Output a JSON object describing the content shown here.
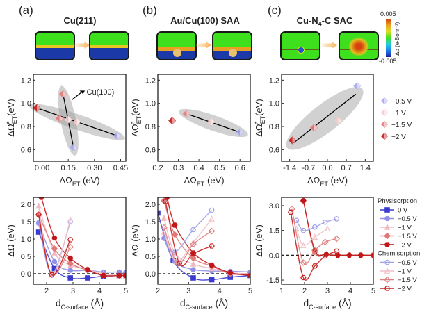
{
  "panels": [
    {
      "label": "(a)",
      "title": "Cu(211)"
    },
    {
      "label": "(b)",
      "title": "Au/Cu(100) SAA"
    },
    {
      "label": "(c)",
      "title_main": "Cu-N",
      "title_sub": "4",
      "title_rest": "-C SAC"
    }
  ],
  "colorbar": {
    "max": "0.005",
    "min": "-0.005",
    "label": "Δρ (e·Bohr⁻³)",
    "colors": [
      "#1a1aa0",
      "#1e7ff0",
      "#22d0d8",
      "#3ee01e",
      "#d8e020",
      "#f0a020",
      "#d04010"
    ]
  },
  "chart_data": [
    {
      "type": "scatter",
      "panel": "a",
      "title": "Cu(211)",
      "xlabel": "ΔΩ_ET (eV)",
      "ylabel": "ΔΩ‡_ET (eV)",
      "xlim": [
        -0.05,
        0.48
      ],
      "ylim": [
        0.5,
        1.25
      ],
      "xticks": [
        "0.00",
        "0.15",
        "0.30",
        "0.45"
      ],
      "xtick_values": [
        0.0,
        0.15,
        0.3,
        0.45
      ],
      "yticks": [
        "0.6",
        "0.8",
        "1.0",
        "1.2"
      ],
      "ytick_values": [
        0.6,
        0.8,
        1.0,
        1.2
      ],
      "annotation": "Cu(100)",
      "series": [
        {
          "name": "Cu(211)",
          "points": [
            [
              -0.03,
              0.96,
              "-2 V"
            ],
            [
              0.1,
              0.87,
              "-1.5 V"
            ],
            [
              0.2,
              0.84,
              "-1 V"
            ],
            [
              0.43,
              0.72,
              "-0.5 V"
            ]
          ],
          "fit": [
            [
              -0.03,
              0.96
            ],
            [
              0.43,
              0.72
            ]
          ]
        },
        {
          "name": "Cu(100)",
          "points": [
            [
              0.12,
              1.08,
              "-1.5 V"
            ],
            [
              0.15,
              0.86,
              "-1 V"
            ],
            [
              0.18,
              0.62,
              "-0.5 V"
            ]
          ],
          "fit": [
            [
              0.12,
              1.08
            ],
            [
              0.18,
              0.62
            ]
          ]
        }
      ]
    },
    {
      "type": "scatter",
      "panel": "b",
      "title": "Au/Cu(100) SAA",
      "xlabel": "ΔΩ_ET (eV)",
      "ylabel": "ΔΩ‡_ET (eV)",
      "xlim": [
        0.2,
        0.65
      ],
      "ylim": [
        0.5,
        1.25
      ],
      "xticks": [
        "0.2",
        "0.3",
        "0.4",
        "0.5",
        "0.6"
      ],
      "xtick_values": [
        0.2,
        0.3,
        0.4,
        0.5,
        0.6
      ],
      "yticks": [
        "0.6",
        "0.8",
        "1.0",
        "1.2"
      ],
      "ytick_values": [
        0.6,
        0.8,
        1.0,
        1.2
      ],
      "series": [
        {
          "name": "SAA",
          "points": [
            [
              0.27,
              0.85,
              "-2 V"
            ],
            [
              0.34,
              0.91,
              "-1.5 V"
            ],
            [
              0.46,
              0.84,
              "-1 V"
            ],
            [
              0.6,
              0.75,
              "-0.5 V"
            ]
          ],
          "fit": [
            [
              0.34,
              0.91
            ],
            [
              0.6,
              0.75
            ]
          ]
        }
      ]
    },
    {
      "type": "scatter",
      "panel": "c",
      "title": "Cu-N4-C SAC",
      "xlabel": "ΔΩ_ET (eV)",
      "ylabel": "ΔΩ‡_ET (eV)",
      "xlim": [
        -1.7,
        1.7
      ],
      "ylim": [
        0.5,
        1.25
      ],
      "xticks": [
        "-1.4",
        "-0.7",
        "0.0",
        "0.7",
        "1.4"
      ],
      "xtick_values": [
        -1.4,
        -0.7,
        0.0,
        0.7,
        1.4
      ],
      "yticks": [
        "0.6",
        "0.8",
        "1.0",
        "1.2"
      ],
      "ytick_values": [
        0.6,
        0.8,
        1.0,
        1.2
      ],
      "legend": [
        {
          "label": "−0.5 V",
          "color": "#a8a8f0"
        },
        {
          "label": "−1 V",
          "color": "#f5cccc"
        },
        {
          "label": "−1.5 V",
          "color": "#e57a7a"
        },
        {
          "label": "−2 V",
          "color": "#c81818"
        }
      ],
      "series": [
        {
          "name": "SAC",
          "points": [
            [
              -1.3,
              0.68,
              "-2 V"
            ],
            [
              -0.5,
              0.79,
              "-1.5 V"
            ],
            [
              0.4,
              0.85,
              "-1 V"
            ],
            [
              1.1,
              1.15,
              "-0.5 V"
            ]
          ],
          "fit": [
            [
              -1.25,
              0.66
            ],
            [
              1.05,
              1.08
            ]
          ]
        }
      ]
    },
    {
      "type": "line",
      "panel": "a",
      "xlabel": "d_C-surface (Å)",
      "ylabel": "ΔΩ (eV)",
      "xlim": [
        1.5,
        5.0
      ],
      "ylim": [
        -0.3,
        2.2
      ],
      "xticks": [
        "2",
        "3",
        "4",
        "5"
      ],
      "xtick_values": [
        2,
        3,
        4,
        5
      ],
      "yticks": [
        "0.0",
        "0.5",
        "1.0",
        "1.5",
        "2.0"
      ],
      "ytick_values": [
        0.0,
        0.5,
        1.0,
        1.5,
        2.0
      ],
      "series": [
        {
          "name": "0 V",
          "kind": "phys",
          "color": "#3a3ad0",
          "marker": "square",
          "x": [
            1.7,
            2.3,
            2.9,
            3.55,
            4.15,
            4.75,
            5.0
          ],
          "y": [
            1.2,
            0.15,
            -0.12,
            -0.12,
            -0.07,
            -0.05,
            -0.05
          ]
        },
        {
          "name": "-0.5 V",
          "kind": "phys",
          "color": "#9090e8",
          "marker": "circle",
          "x": [
            1.7,
            2.3,
            2.9,
            3.55,
            4.15,
            4.75,
            5.0
          ],
          "y": [
            1.47,
            0.35,
            0.1,
            0.1,
            0.05,
            0.05,
            0.04
          ]
        },
        {
          "name": "-1 V",
          "kind": "phys",
          "color": "#f0b8c0",
          "marker": "triangle",
          "x": [
            1.7,
            2.3,
            2.9,
            3.55,
            4.15,
            4.75,
            5.0
          ],
          "y": [
            1.95,
            0.6,
            0.25,
            0.12,
            0.0,
            -0.05,
            -0.05
          ]
        },
        {
          "name": "-1.5 V",
          "kind": "phys",
          "color": "#e07878",
          "marker": "diamond",
          "x": [
            1.7,
            2.3,
            2.9,
            3.55,
            4.15,
            4.75,
            5.0
          ],
          "y": [
            1.7,
            0.72,
            0.3,
            0.1,
            -0.05,
            -0.05,
            -0.05
          ]
        },
        {
          "name": "-2 V",
          "kind": "phys",
          "color": "#c01818",
          "marker": "hexagon",
          "x": [
            1.8,
            2.3,
            2.9,
            3.55,
            4.15,
            4.75,
            5.0
          ],
          "y": [
            2.2,
            1.03,
            0.45,
            0.12,
            -0.05,
            -0.05,
            -0.05
          ]
        },
        {
          "name": "-0.5 V",
          "kind": "chem",
          "color": "#a0a0e8",
          "marker": "circle-open",
          "x": [
            1.7,
            2.2,
            2.9
          ],
          "y": [
            1.45,
            0.0,
            1.5
          ]
        },
        {
          "name": "-1 V",
          "kind": "chem",
          "color": "#f0c0c8",
          "marker": "triangle-open",
          "x": [
            1.7,
            2.2,
            2.9
          ],
          "y": [
            1.95,
            -0.03,
            1.55
          ]
        },
        {
          "name": "-1.5 V",
          "kind": "chem",
          "color": "#e08080",
          "marker": "diamond-open",
          "x": [
            1.7,
            2.2,
            2.9
          ],
          "y": [
            1.7,
            -0.03,
            0.77
          ]
        },
        {
          "name": "-2 V",
          "kind": "chem",
          "color": "#c82020",
          "marker": "hexagon-open",
          "x": [
            1.7,
            2.2,
            2.9
          ],
          "y": [
            1.7,
            -0.03,
            0.98
          ]
        }
      ]
    },
    {
      "type": "line",
      "panel": "b",
      "xlabel": "d_C-surface (Å)",
      "ylabel": "ΔΩ (eV)",
      "xlim": [
        2.0,
        5.0
      ],
      "ylim": [
        -0.3,
        2.2
      ],
      "xticks": [
        "2",
        "3",
        "4",
        "5"
      ],
      "xtick_values": [
        2,
        3,
        4,
        5
      ],
      "yticks": [
        "0.0",
        "0.5",
        "1.0",
        "1.5",
        "2.0"
      ],
      "ytick_values": [
        0.0,
        0.5,
        1.0,
        1.5,
        2.0
      ],
      "series": [
        {
          "name": "0 V",
          "kind": "phys",
          "color": "#3a3ad0",
          "marker": "square",
          "x": [
            2.0,
            2.5,
            3.15,
            3.75,
            4.35,
            5.0
          ],
          "y": [
            1.75,
            0.38,
            -0.12,
            -0.17,
            -0.1,
            -0.05
          ]
        },
        {
          "name": "-0.5 V",
          "kind": "phys",
          "color": "#9090e8",
          "marker": "circle",
          "x": [
            2.2,
            2.55,
            3.15,
            3.75,
            4.35,
            5.0
          ],
          "y": [
            1.02,
            0.35,
            0.12,
            0.08,
            0.07,
            0.05
          ]
        },
        {
          "name": "-1 V",
          "kind": "phys",
          "color": "#f0b8c0",
          "marker": "triangle",
          "x": [
            2.2,
            2.55,
            3.15,
            3.75,
            4.35,
            5.0
          ],
          "y": [
            1.6,
            0.6,
            0.28,
            0.15,
            0.03,
            0.0
          ]
        },
        {
          "name": "-1.5 V",
          "kind": "phys",
          "color": "#e07878",
          "marker": "diamond",
          "x": [
            2.2,
            2.55,
            3.15,
            3.75,
            4.35,
            5.0
          ],
          "y": [
            2.1,
            1.13,
            0.45,
            0.22,
            0.0,
            -0.03
          ]
        },
        {
          "name": "-2 V",
          "kind": "phys",
          "color": "#c01818",
          "marker": "hexagon",
          "x": [
            2.3,
            2.55,
            3.15,
            3.75,
            4.35,
            5.0
          ],
          "y": [
            2.2,
            1.4,
            0.6,
            0.25,
            0.03,
            -0.05
          ]
        },
        {
          "name": "-0.5 V",
          "kind": "chem",
          "color": "#a0a0e8",
          "marker": "circle-open",
          "x": [
            2.2,
            2.55,
            3.15,
            3.75
          ],
          "y": [
            1.02,
            0.62,
            1.27,
            1.83
          ]
        },
        {
          "name": "-1 V",
          "kind": "chem",
          "color": "#f0c0c8",
          "marker": "triangle-open",
          "x": [
            2.2,
            2.6,
            3.15,
            3.75
          ],
          "y": [
            1.2,
            0.35,
            0.9,
            1.58
          ]
        },
        {
          "name": "-1.5 V",
          "kind": "chem",
          "color": "#e08080",
          "marker": "diamond-open",
          "x": [
            2.2,
            2.65,
            3.15,
            3.75
          ],
          "y": [
            1.33,
            0.3,
            0.85,
            1.23
          ]
        },
        {
          "name": "-2 V",
          "kind": "chem",
          "color": "#c82020",
          "marker": "hexagon-open",
          "x": [
            2.25,
            2.7,
            3.15,
            3.75
          ],
          "y": [
            2.08,
            0.3,
            0.58,
            0.8
          ]
        }
      ]
    },
    {
      "type": "line",
      "panel": "c",
      "xlabel": "d_C-surface (Å)",
      "ylabel": "ΔΩ (eV)",
      "xlim": [
        1.0,
        5.0
      ],
      "ylim": [
        -1.75,
        3.5
      ],
      "xticks": [
        "1",
        "2",
        "3",
        "4",
        "5"
      ],
      "xtick_values": [
        1,
        2,
        3,
        4,
        5
      ],
      "yticks": [
        "-1.5",
        "0.0",
        "1.5",
        "3.0"
      ],
      "ytick_values": [
        -1.5,
        0.0,
        1.5,
        3.0
      ],
      "legend_groups": [
        {
          "title": "Physisorption",
          "items": [
            {
              "label": "0 V",
              "color": "#3a3ad0",
              "marker": "square"
            },
            {
              "label": "−0.5 V",
              "color": "#9090e8",
              "marker": "circle"
            },
            {
              "label": "−1 V",
              "color": "#f0b8c0",
              "marker": "triangle"
            },
            {
              "label": "−1.5 V",
              "color": "#e07878",
              "marker": "diamond"
            },
            {
              "label": "−2 V",
              "color": "#c01818",
              "marker": "hexagon"
            }
          ]
        },
        {
          "title": "Chemisorption",
          "items": [
            {
              "label": "−0.5 V",
              "color": "#a0a0e8",
              "marker": "circle-open"
            },
            {
              "label": "−1 V",
              "color": "#f0c0c8",
              "marker": "triangle-open"
            },
            {
              "label": "−1.5 V",
              "color": "#e08080",
              "marker": "diamond-open"
            },
            {
              "label": "−2 V",
              "color": "#c82020",
              "marker": "hexagon-open"
            }
          ]
        }
      ],
      "series": [
        {
          "name": "-1.5 V",
          "kind": "phys",
          "color": "#e07878",
          "marker": "diamond",
          "x": [
            1.95,
            2.45,
            2.95,
            3.45,
            3.95,
            4.45,
            5.0
          ],
          "y": [
            3.3,
            0.2,
            0.05,
            0.0,
            0.0,
            0.0,
            0.0
          ]
        },
        {
          "name": "-2 V",
          "kind": "phys",
          "color": "#c01818",
          "marker": "hexagon",
          "x": [
            1.95,
            2.45,
            2.95,
            3.45,
            3.95,
            4.45,
            5.0
          ],
          "y": [
            3.3,
            0.3,
            0.05,
            0.0,
            0.0,
            0.0,
            0.0
          ]
        },
        {
          "name": "-0.5 V",
          "kind": "chem",
          "color": "#a0a0e8",
          "marker": "circle-open",
          "x": [
            1.65,
            1.95,
            2.45,
            2.9,
            3.4
          ],
          "y": [
            2.1,
            1.5,
            1.7,
            2.0,
            2.2
          ]
        },
        {
          "name": "-1 V",
          "kind": "chem",
          "color": "#f0c0c8",
          "marker": "triangle-open",
          "x": [
            1.65,
            1.95,
            2.45,
            3.0
          ],
          "y": [
            1.6,
            0.6,
            1.1,
            1.6
          ]
        },
        {
          "name": "-1.5 V",
          "kind": "chem",
          "color": "#e08080",
          "marker": "diamond-open",
          "x": [
            1.45,
            1.95,
            2.45,
            2.9,
            3.4
          ],
          "y": [
            2.8,
            -0.45,
            0.3,
            0.8,
            1.0
          ]
        },
        {
          "name": "-2 V",
          "kind": "chem",
          "color": "#c82020",
          "marker": "hexagon-open",
          "x": [
            1.4,
            1.95,
            2.45,
            2.9,
            3.4
          ],
          "y": [
            2.6,
            -1.35,
            -0.65,
            -0.05,
            0.25
          ]
        }
      ]
    }
  ]
}
